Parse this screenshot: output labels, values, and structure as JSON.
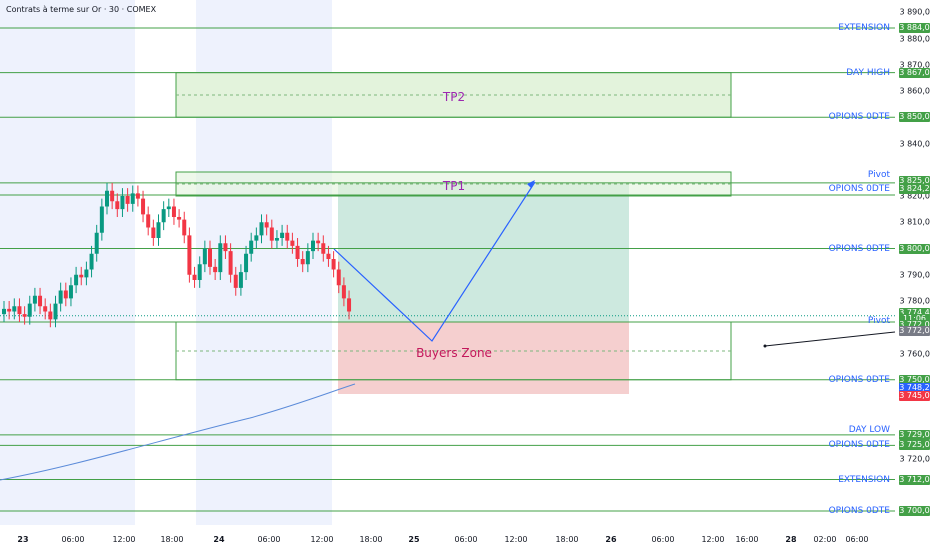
{
  "header": {
    "title": "Contrats à terme sur Or · 30 · COMEX"
  },
  "price_axis": [
    "3 890,0",
    "3 880,0",
    "3 870,0",
    "3 860,0",
    "3 840,0",
    "3 820,0",
    "3 810,0",
    "3 790,0",
    "3 780,0",
    "3 760,0",
    "3 720,0"
  ],
  "price_tags": {
    "extension_top": "3 884,0",
    "day_high": "3 867,0",
    "opions_850": "3 850,0",
    "pivot_825": "3 825,0",
    "opions_824": "3 824,2",
    "opions_800": "3 800,0",
    "last_price": "3 774,4",
    "countdown": "11:06",
    "pivot_772": "3 772,0",
    "grey_772": "3 772,0",
    "opions_750": "3 750,0",
    "blue_748": "3 748,2",
    "red_745": "3 745,0",
    "day_low": "3 729,0",
    "opions_725": "3 725,0",
    "extension_bottom": "3 712,0",
    "opions_700": "3 700,0"
  },
  "level_labels": {
    "extension_top": "EXTENSION",
    "day_high": "DAY HIGH",
    "opions_850": "OPIONS 0DTE",
    "pivot_825": "Pivot",
    "opions_824": "OPIONS 0DTE",
    "opions_800": "OPIONS 0DTE",
    "pivot_772": "Pivot",
    "opions_750": "OPIONS 0DTE",
    "day_low": "DAY LOW",
    "opions_725": "OPIONS 0DTE",
    "extension_bottom": "EXTENSION",
    "opions_700": "OPIONS 0DTE"
  },
  "zones": {
    "tp2": "TP2",
    "tp1": "TP1",
    "buyers": "Buyers Zone"
  },
  "time_axis": [
    "23",
    "06:00",
    "12:00",
    "18:00",
    "24",
    "06:00",
    "12:00",
    "18:00",
    "25",
    "06:00",
    "12:00",
    "18:00",
    "26",
    "06:00",
    "12:00",
    "16:00",
    "28",
    "02:00",
    "06:00"
  ],
  "colors": {
    "up": "#089981",
    "down": "#f23645",
    "level": "#4caf50",
    "label": "#2962ff",
    "zone_text": "#9c27b0"
  },
  "chart_data": {
    "type": "candlestick",
    "instrument": "Contrats à terme sur Or",
    "timeframe": "30",
    "exchange": "COMEX",
    "y_range": [
      3697,
      3893
    ],
    "levels": [
      3884.0,
      3867.0,
      3850.0,
      3825.0,
      3824.2,
      3800.0,
      3772.0,
      3750.0,
      3729.0,
      3725.0,
      3712.0,
      3700.0
    ],
    "last_price": 3774.4,
    "candles_close": [
      3777,
      3776,
      3778,
      3775,
      3774,
      3779,
      3782,
      3778,
      3776,
      3773,
      3779,
      3784,
      3781,
      3786,
      3790,
      3789,
      3792,
      3798,
      3806,
      3816,
      3822,
      3818,
      3815,
      3820,
      3817,
      3821,
      3819,
      3813,
      3808,
      3804,
      3810,
      3815,
      3816,
      3812,
      3811,
      3805,
      3790,
      3788,
      3794,
      3800,
      3793,
      3791,
      3802,
      3799,
      3790,
      3785,
      3791,
      3798,
      3803,
      3805,
      3810,
      3808,
      3803,
      3804,
      3806,
      3803,
      3801,
      3796,
      3794,
      3799,
      3803,
      3802,
      3798,
      3796,
      3792,
      3786,
      3781,
      3776
    ]
  }
}
